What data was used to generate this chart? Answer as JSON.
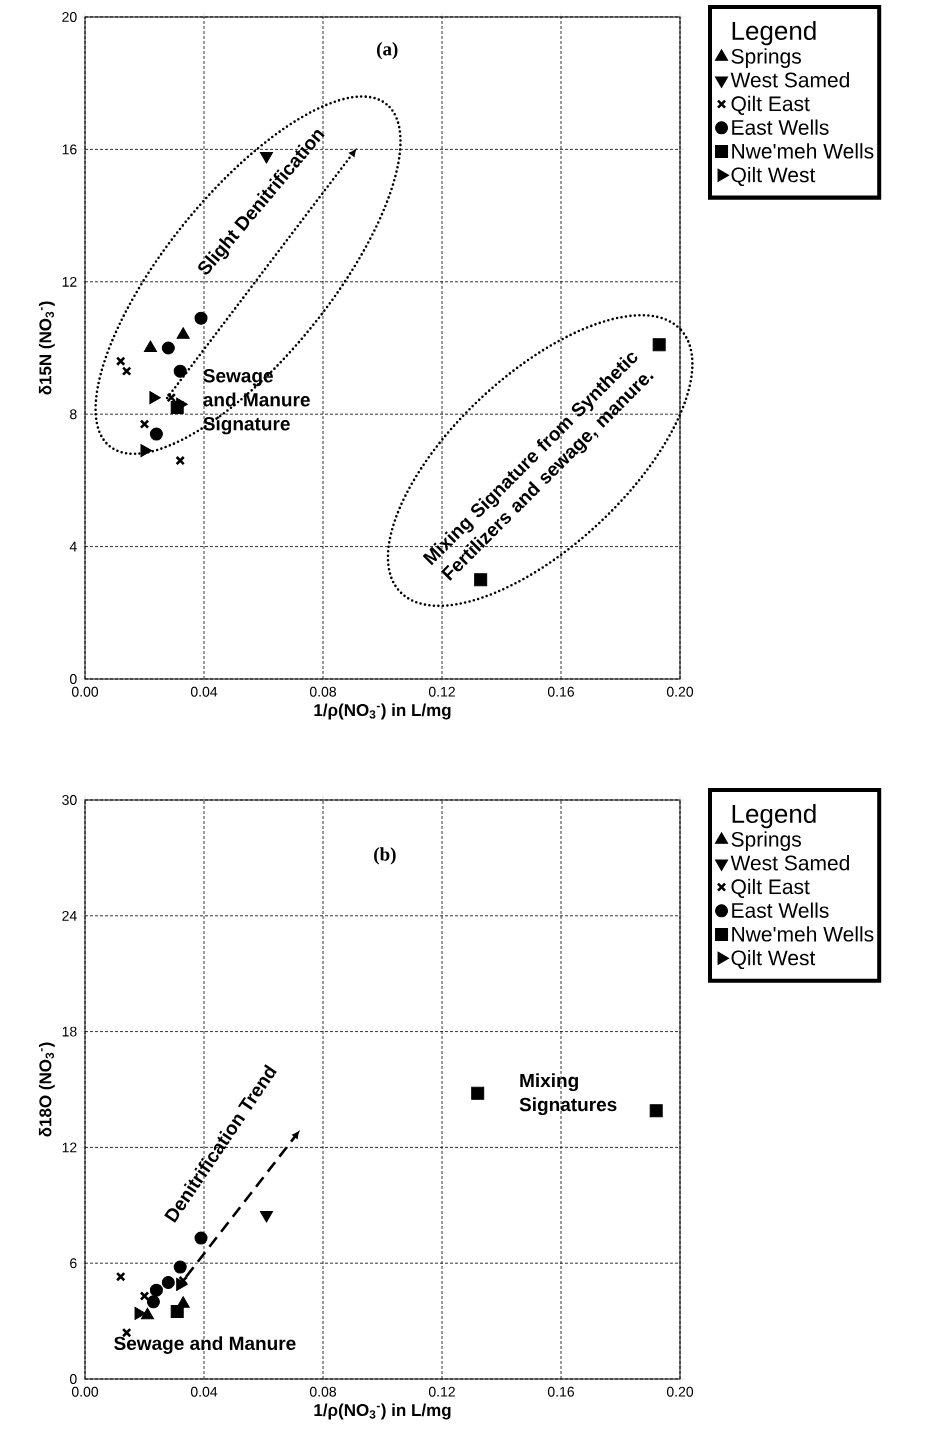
{
  "chart_data": [
    {
      "type": "scatter",
      "title": "(a)",
      "xlabel": "1/ρ(NO$_{3}$$^{-}$) in L/mg",
      "ylabel": "δ15N (NO$_{3}$$^{-}$)",
      "legend_title": "Legend",
      "annotations": [
        "Slight Denitrification",
        "Sewage and Manure Signature",
        "Mixing Signature from Synthetic Fertilizers and sewage, manure."
      ],
      "xlim": [
        0,
        0.2
      ],
      "ylim": [
        0,
        20
      ],
      "xticks": [
        {
          "value": 0,
          "label": "0.00"
        },
        {
          "value": 0.04,
          "label": "0.04"
        },
        {
          "value": 0.08,
          "label": "0.08"
        },
        {
          "value": 0.12,
          "label": "0.12"
        },
        {
          "value": 0.16,
          "label": "0.16"
        },
        {
          "value": 0.2,
          "label": "0.20"
        }
      ],
      "yticks": [
        0,
        4,
        8,
        12,
        16,
        20
      ],
      "grid": true,
      "legend": "right",
      "series": [
        {
          "name": "Springs",
          "color": "#000000",
          "marker": "triangle",
          "x": [
            0.022,
            0.033
          ],
          "values": [
            10.0,
            10.4
          ]
        },
        {
          "name": "West Samed",
          "color": "#000000",
          "marker": "triangle_down",
          "x": [
            0.061
          ],
          "values": [
            15.8
          ]
        },
        {
          "name": "Qilt East",
          "color": "#000000",
          "marker": "cross",
          "x": [
            0.012,
            0.014,
            0.029,
            0.02,
            0.032
          ],
          "values": [
            9.6,
            9.3,
            8.5,
            7.7,
            6.6
          ]
        },
        {
          "name": "East Wells",
          "color": "#000000",
          "marker": "circle",
          "x": [
            0.039,
            0.028,
            0.032,
            0.024
          ],
          "values": [
            10.9,
            10.0,
            9.3,
            7.4
          ]
        },
        {
          "name": "Nwe'meh Wells",
          "color": "#000000",
          "marker": "square",
          "x": [
            0.031,
            0.133,
            0.193
          ],
          "values": [
            8.2,
            3.0,
            10.1
          ]
        },
        {
          "name": "Qilt West",
          "color": "#000000",
          "marker": "triangle",
          "x": [
            0.023,
            0.032,
            0.02
          ],
          "values": [
            8.5,
            8.3,
            6.9
          ]
        }
      ]
    },
    {
      "type": "scatter",
      "title": "(b)",
      "xlabel": "1/ρ(NO$_{3}$$^{-}$) in L/mg",
      "ylabel": "δ18O (NO$_{3}$$^{-}$)",
      "legend_title": "Legend",
      "annotations": [
        "Denitrification Trend",
        "Sewage and Manure",
        "Mixing Signatures"
      ],
      "xlim": [
        0,
        0.2
      ],
      "ylim": [
        0,
        30
      ],
      "xticks": [
        {
          "value": 0,
          "label": "0.00"
        },
        {
          "value": 0.04,
          "label": "0.04"
        },
        {
          "value": 0.08,
          "label": "0.08"
        },
        {
          "value": 0.12,
          "label": "0.12"
        },
        {
          "value": 0.16,
          "label": "0.16"
        },
        {
          "value": 0.2,
          "label": "0.20"
        }
      ],
      "yticks": [
        0,
        6,
        12,
        18,
        24,
        30
      ],
      "grid": true,
      "legend": "right",
      "series": [
        {
          "name": "Springs",
          "color": "#000000",
          "marker": "triangle",
          "x": [
            0.021,
            0.033
          ],
          "values": [
            3.3,
            3.9
          ]
        },
        {
          "name": "West Samed",
          "color": "#000000",
          "marker": "triangle_down",
          "x": [
            0.061
          ],
          "values": [
            8.5
          ]
        },
        {
          "name": "Qilt East",
          "color": "#000000",
          "marker": "cross",
          "x": [
            0.012,
            0.02,
            0.033,
            0.014
          ],
          "values": [
            5.3,
            4.3,
            5.1,
            2.4
          ]
        },
        {
          "name": "East Wells",
          "color": "#000000",
          "marker": "circle",
          "x": [
            0.039,
            0.032,
            0.028,
            0.024,
            0.023
          ],
          "values": [
            7.3,
            5.8,
            5.0,
            4.6,
            4.0
          ]
        },
        {
          "name": "Nwe'meh Wells",
          "color": "#000000",
          "marker": "square",
          "x": [
            0.031,
            0.132,
            0.192
          ],
          "values": [
            3.5,
            14.8,
            13.9
          ]
        },
        {
          "name": "Qilt West",
          "color": "#000000",
          "marker": "triangle",
          "x": [
            0.018,
            0.032
          ],
          "values": [
            3.4,
            4.9
          ]
        }
      ]
    }
  ]
}
